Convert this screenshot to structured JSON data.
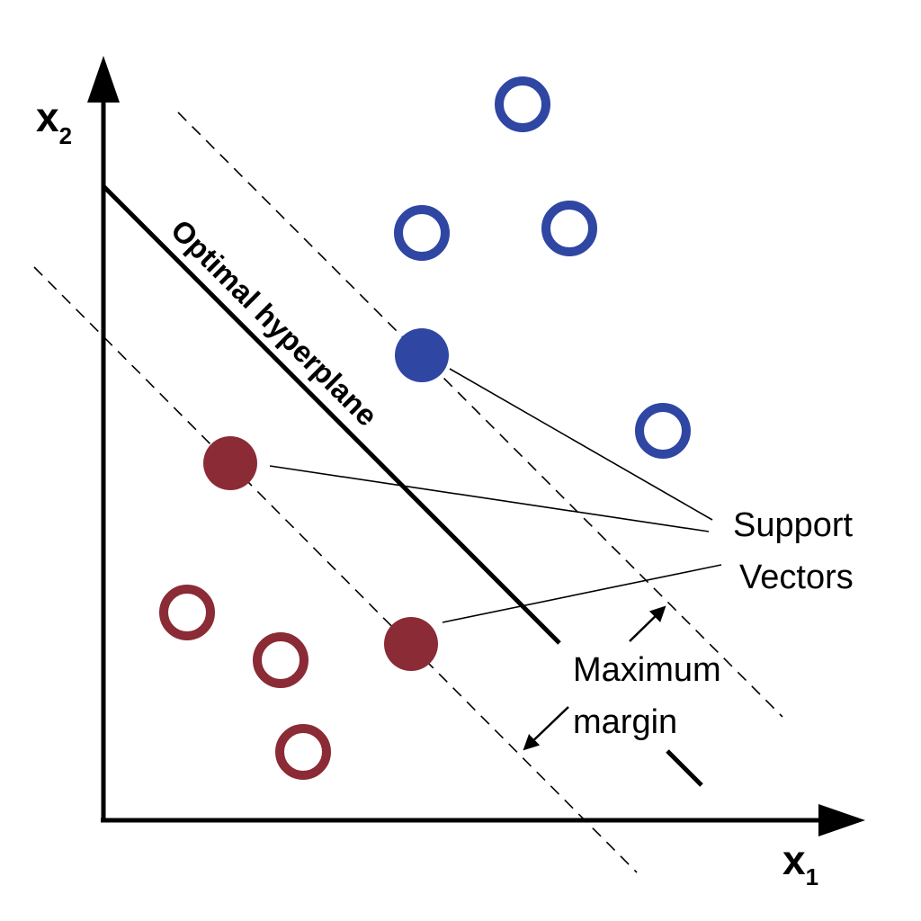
{
  "axes": {
    "x_main": "x",
    "x_sub": "1",
    "y_main": "x",
    "y_sub": "2"
  },
  "labels": {
    "hyperplane": "Optimal hyperplane",
    "support_line1": "Support",
    "support_line2": "Vectors",
    "margin_line1": "Maximum",
    "margin_line2": "margin"
  },
  "colors": {
    "class_blue": "#2f46a3",
    "class_red": "#8b2b35",
    "line": "#000000"
  }
}
